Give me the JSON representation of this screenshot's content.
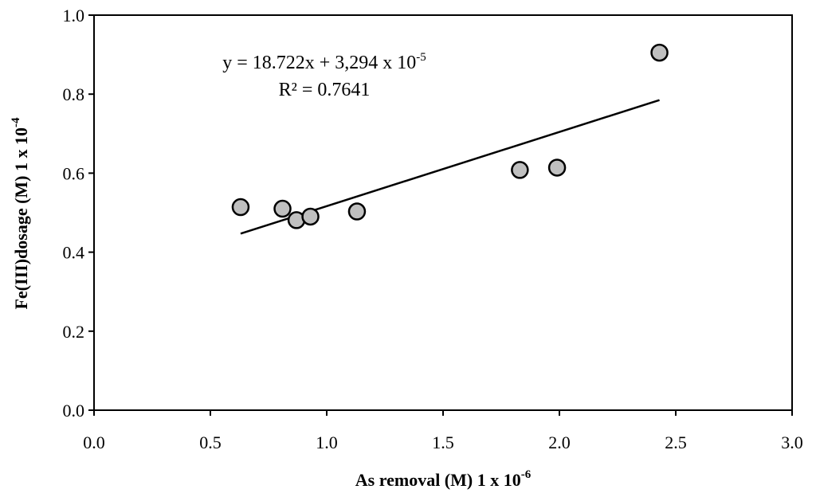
{
  "chart_data": {
    "type": "scatter",
    "xlabel": {
      "main": "As removal (M) 1 x 10",
      "sup": "-6"
    },
    "ylabel": {
      "main": "Fe(III)dosage (M)  1 x 10",
      "sup": "-4"
    },
    "xlim": [
      0.0,
      3.0
    ],
    "ylim": [
      0.0,
      1.0
    ],
    "x_ticks": [
      "0.0",
      "0.5",
      "1.0",
      "1.5",
      "2.0",
      "2.5",
      "3.0"
    ],
    "y_ticks": [
      "0.0",
      "0.2",
      "0.4",
      "0.6",
      "0.8",
      "1.0"
    ],
    "points": [
      {
        "x": 0.63,
        "y": 0.514
      },
      {
        "x": 0.81,
        "y": 0.51
      },
      {
        "x": 0.87,
        "y": 0.481
      },
      {
        "x": 0.93,
        "y": 0.49
      },
      {
        "x": 1.13,
        "y": 0.503
      },
      {
        "x": 1.83,
        "y": 0.608
      },
      {
        "x": 1.99,
        "y": 0.614
      },
      {
        "x": 2.43,
        "y": 0.905
      }
    ],
    "trendline": {
      "x": [
        0.63,
        2.43
      ],
      "y": [
        0.447,
        0.785
      ]
    },
    "equation": {
      "main": "y = 18.722x + 3,294 x 10",
      "sup": "-5"
    },
    "r_squared": "R² = 0.7641",
    "grid": false,
    "colors": {
      "marker_fill": "#c0c0c0",
      "marker_stroke": "#000000",
      "line": "#000000",
      "axis": "#000000"
    }
  }
}
